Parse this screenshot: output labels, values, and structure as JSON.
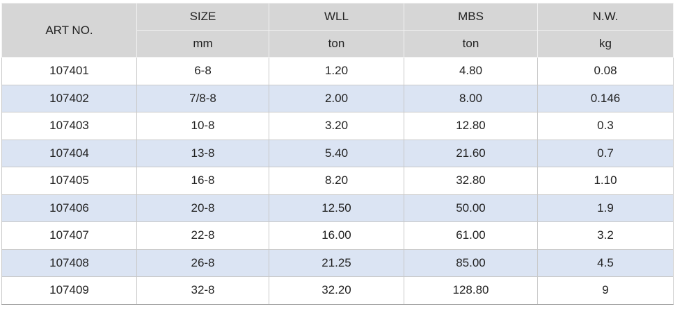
{
  "table": {
    "header": [
      "ART NO.",
      "SIZE",
      "WLL",
      "MBS",
      "N.W."
    ],
    "units": [
      "mm",
      "ton",
      "ton",
      "kg"
    ],
    "rows": [
      [
        "107401",
        "6-8",
        "1.20",
        "4.80",
        "0.08"
      ],
      [
        "107402",
        "7/8-8",
        "2.00",
        "8.00",
        "0.146"
      ],
      [
        "107403",
        "10-8",
        "3.20",
        "12.80",
        "0.3"
      ],
      [
        "107404",
        "13-8",
        "5.40",
        "21.60",
        "0.7"
      ],
      [
        "107405",
        "16-8",
        "8.20",
        "32.80",
        "1.10"
      ],
      [
        "107406",
        "20-8",
        "12.50",
        "50.00",
        "1.9"
      ],
      [
        "107407",
        "22-8",
        "16.00",
        "61.00",
        "3.2"
      ],
      [
        "107408",
        "26-8",
        "21.25",
        "85.00",
        "4.5"
      ],
      [
        "107409",
        "32-8",
        "32.20",
        "128.80",
        "9"
      ]
    ]
  }
}
